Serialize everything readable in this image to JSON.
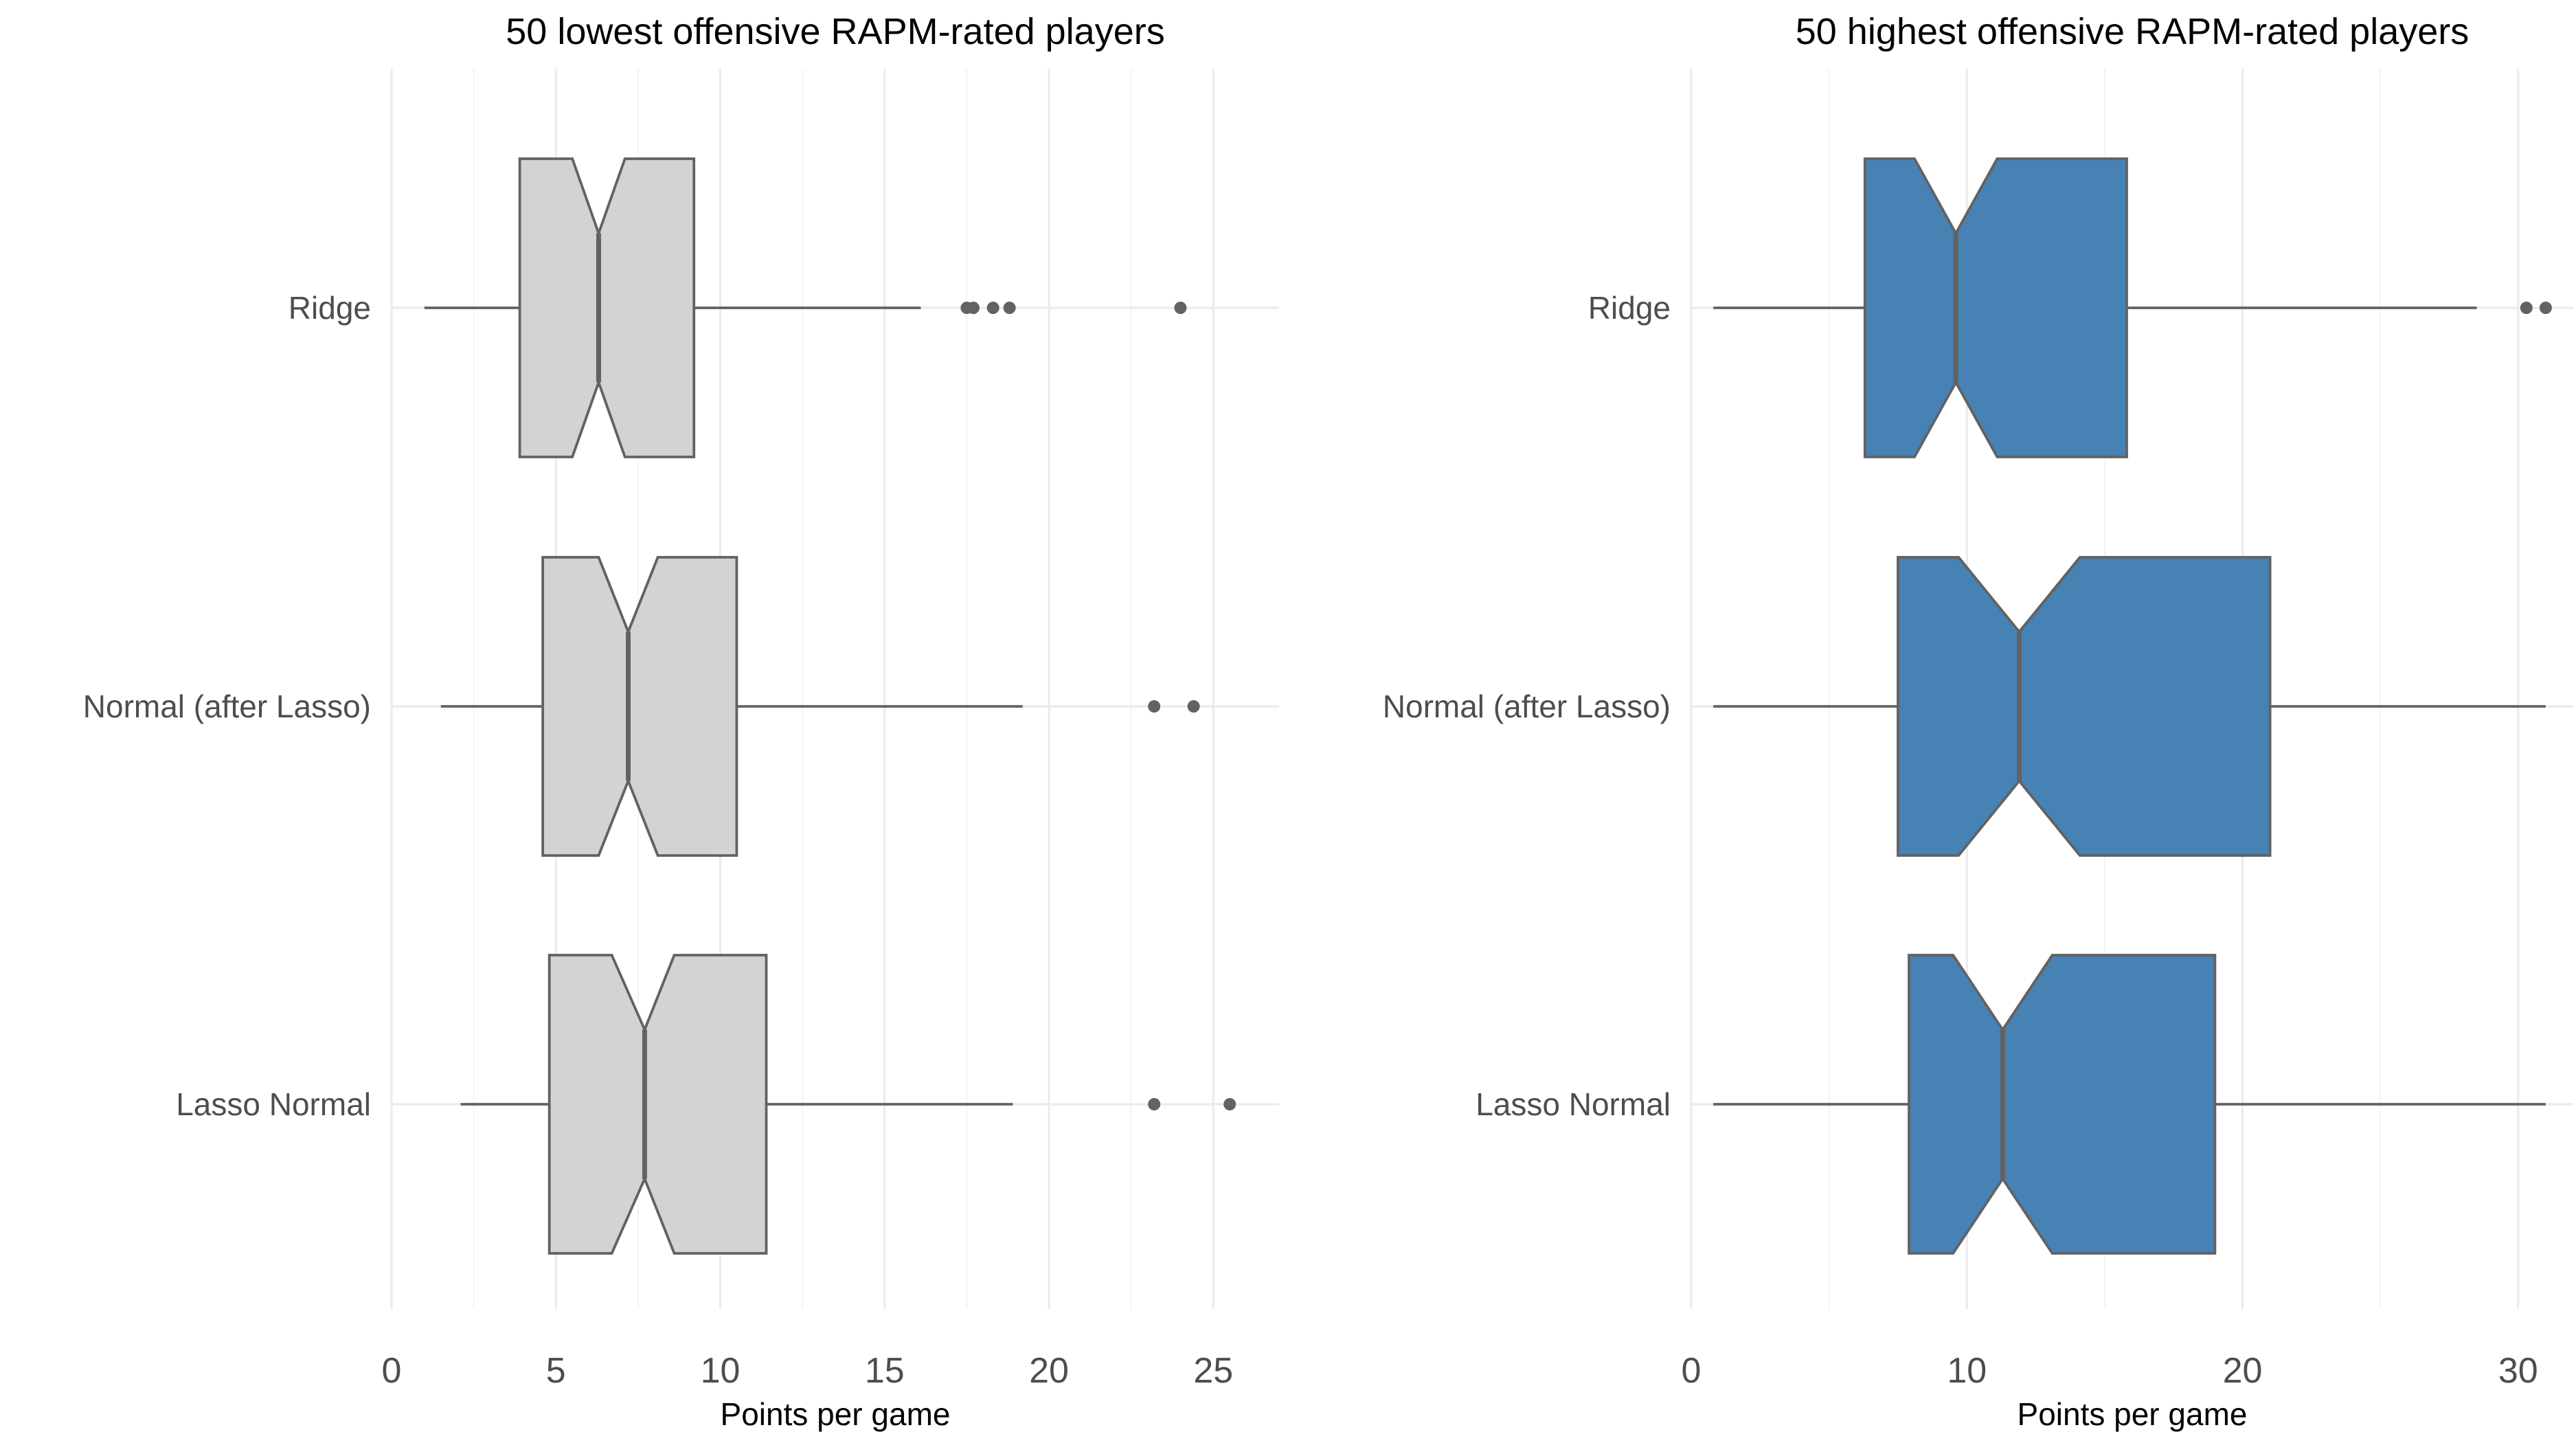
{
  "chart_data": [
    {
      "type": "boxplot",
      "orientation": "horizontal",
      "notched": true,
      "title": "50 lowest offensive RAPM-rated players",
      "xlabel": "Points per game",
      "ylabel": "",
      "xlim": [
        0,
        27
      ],
      "x_ticks": [
        0,
        5,
        10,
        15,
        20,
        25
      ],
      "fill_color": "#d3d3d3",
      "line_color": "#626262",
      "grid": true,
      "categories": [
        "Ridge",
        "Normal (after Lasso)",
        "Lasso Normal"
      ],
      "series": [
        {
          "category": "Ridge",
          "whisker_low": 1.0,
          "q1": 3.9,
          "median": 6.3,
          "q3": 9.2,
          "whisker_high": 16.1,
          "notch_low": 5.5,
          "notch_high": 7.1,
          "outliers": [
            17.5,
            17.7,
            18.3,
            18.8,
            24.0
          ]
        },
        {
          "category": "Normal (after Lasso)",
          "whisker_low": 1.5,
          "q1": 4.6,
          "median": 7.2,
          "q3": 10.5,
          "whisker_high": 19.2,
          "notch_low": 6.3,
          "notch_high": 8.1,
          "outliers": [
            23.2,
            24.4
          ]
        },
        {
          "category": "Lasso Normal",
          "whisker_low": 2.1,
          "q1": 4.8,
          "median": 7.7,
          "q3": 11.4,
          "whisker_high": 18.9,
          "notch_low": 6.7,
          "notch_high": 8.6,
          "outliers": [
            23.2,
            25.5
          ]
        }
      ]
    },
    {
      "type": "boxplot",
      "orientation": "horizontal",
      "notched": true,
      "title": "50 highest offensive RAPM-rated players",
      "xlabel": "Points per game",
      "ylabel": "",
      "xlim": [
        0,
        32
      ],
      "x_ticks": [
        0,
        10,
        20,
        30
      ],
      "fill_color": "#4682b4",
      "line_color": "#626262",
      "grid": true,
      "categories": [
        "Ridge",
        "Normal (after Lasso)",
        "Lasso Normal"
      ],
      "series": [
        {
          "category": "Ridge",
          "whisker_low": 0.8,
          "q1": 6.3,
          "median": 9.6,
          "q3": 15.8,
          "whisker_high": 28.5,
          "notch_low": 8.1,
          "notch_high": 11.1,
          "outliers": [
            30.3,
            31.0
          ]
        },
        {
          "category": "Normal (after Lasso)",
          "whisker_low": 0.8,
          "q1": 7.5,
          "median": 11.9,
          "q3": 21.0,
          "whisker_high": 31.0,
          "notch_low": 9.7,
          "notch_high": 14.1,
          "outliers": []
        },
        {
          "category": "Lasso Normal",
          "whisker_low": 0.8,
          "q1": 7.9,
          "median": 11.3,
          "q3": 19.0,
          "whisker_high": 31.0,
          "notch_low": 9.5,
          "notch_high": 13.1,
          "outliers": []
        }
      ]
    }
  ]
}
